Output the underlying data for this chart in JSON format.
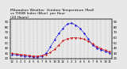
{
  "hours": [
    0,
    1,
    2,
    3,
    4,
    5,
    6,
    7,
    8,
    9,
    10,
    11,
    12,
    13,
    14,
    15,
    16,
    17,
    18,
    19,
    20,
    21,
    22,
    23
  ],
  "temp_red": [
    30,
    29,
    28,
    27,
    26,
    25,
    25,
    26,
    28,
    32,
    38,
    46,
    54,
    58,
    60,
    60,
    59,
    57,
    53,
    48,
    43,
    39,
    36,
    33
  ],
  "thsw_blue": [
    28,
    27,
    26,
    25,
    24,
    23,
    23,
    25,
    30,
    42,
    56,
    68,
    78,
    86,
    88,
    84,
    78,
    68,
    57,
    46,
    40,
    37,
    34,
    31
  ],
  "red_color": "#cc0000",
  "blue_color": "#0000dd",
  "bg_color": "#e8e8e8",
  "plot_bg": "#e8e8e8",
  "ylim": [
    20,
    95
  ],
  "yticks": [
    20,
    30,
    40,
    50,
    60,
    70,
    80,
    90
  ],
  "xtick_labels": [
    "12",
    "1",
    "2",
    "3",
    "4",
    "5",
    "6",
    "7",
    "8",
    "9",
    "10",
    "11",
    "12",
    "1",
    "2",
    "3",
    "4",
    "5",
    "6",
    "7",
    "8",
    "9",
    "10",
    "11"
  ],
  "grid_color": "#888888",
  "title_line1": "Milwaukee Weather  Outdoor Temperature (Red)",
  "title_line2": "vs THSW Index (Blue)  per Hour",
  "title_line3": "(24 Hours)",
  "title_fontsize": 3.2,
  "tick_fontsize": 2.8,
  "linewidth": 0.6,
  "markersize": 1.2
}
